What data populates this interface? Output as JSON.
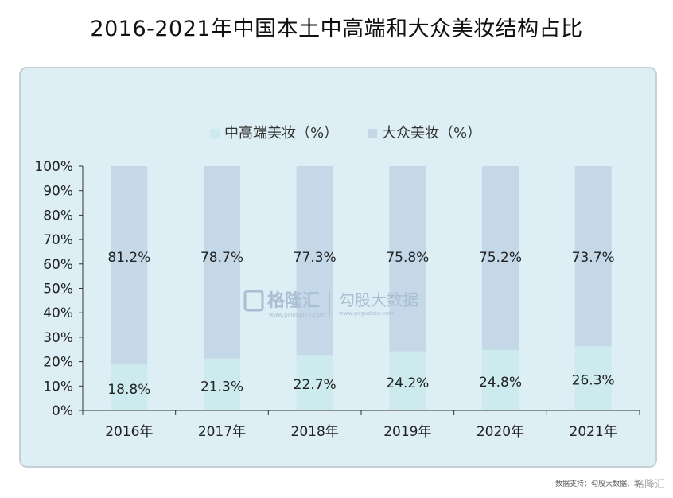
{
  "title": "2016-2021年中国本土中高端和大众美妆结构占比",
  "watermark": {
    "left_text": "格隆汇",
    "left_sub": "www.gelonghui.com",
    "right_text": "勾股大数据",
    "right_sub": "www.gogudata.com"
  },
  "source_text": "数据支持：勾股大数据、华",
  "corner_logo": "格隆汇",
  "colors": {
    "background": "#ddeef4",
    "series_high": "#cdebef",
    "series_mass": "#c5d8e8",
    "axis": "#333333"
  },
  "chart_data": {
    "type": "bar",
    "stacked": true,
    "title": "2016-2021年中国本土中高端和大众美妆结构占比",
    "categories": [
      "2016年",
      "2017年",
      "2018年",
      "2019年",
      "2020年",
      "2021年"
    ],
    "series": [
      {
        "name": "中高端美妆（%）",
        "values": [
          18.8,
          21.3,
          22.7,
          24.2,
          24.8,
          26.3
        ],
        "labels": [
          "18.8%",
          "21.3%",
          "22.7%",
          "24.2%",
          "24.8%",
          "26.3%"
        ]
      },
      {
        "name": "大众美妆（%）",
        "values": [
          81.2,
          78.7,
          77.3,
          75.8,
          75.2,
          73.7
        ],
        "labels": [
          "81.2%",
          "78.7%",
          "77.3%",
          "75.8%",
          "75.2%",
          "73.7%"
        ]
      }
    ],
    "ylim": [
      0,
      100
    ],
    "yticks": [
      "0%",
      "10%",
      "20%",
      "30%",
      "40%",
      "50%",
      "60%",
      "70%",
      "80%",
      "90%",
      "100%"
    ],
    "grid": false,
    "legend": "top-center",
    "xlabel": "",
    "ylabel": ""
  }
}
